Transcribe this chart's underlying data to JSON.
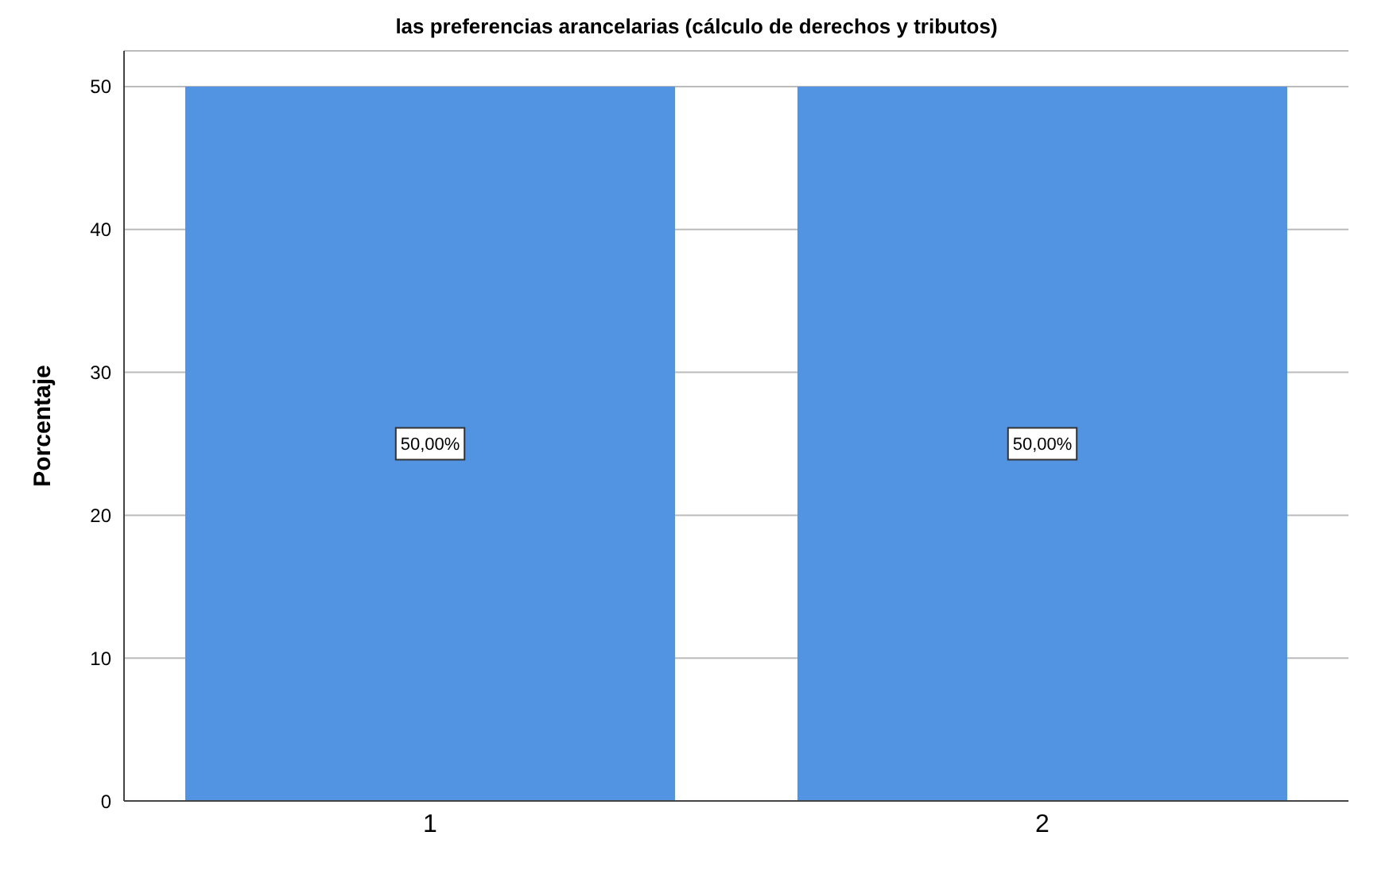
{
  "chart_data": {
    "type": "bar",
    "title": "las preferencias arancelarias (cálculo de derechos y tributos)",
    "ylabel": "Porcentaje",
    "categories": [
      "1",
      "2"
    ],
    "values": [
      50,
      50
    ],
    "value_labels": [
      "50,00%",
      "50,00%"
    ],
    "color": "#5294e2",
    "ylim": [
      0,
      52.5
    ],
    "yticks": [
      0,
      10,
      20,
      30,
      40,
      50
    ],
    "grid": "y"
  }
}
